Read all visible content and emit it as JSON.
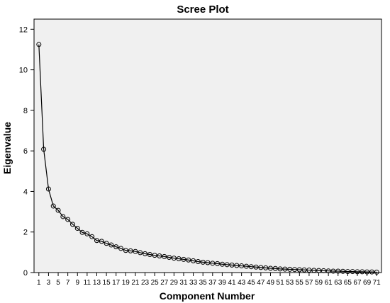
{
  "chart_data": {
    "type": "line",
    "title": "Scree Plot",
    "xlabel": "Component Number",
    "ylabel": "Eigenvalue",
    "ylim": [
      0,
      12.5
    ],
    "xlim": [
      0,
      72
    ],
    "yticks": [
      0,
      2,
      4,
      6,
      8,
      10,
      12
    ],
    "xticks": [
      1,
      3,
      5,
      7,
      9,
      11,
      13,
      15,
      17,
      19,
      21,
      23,
      25,
      27,
      29,
      31,
      33,
      35,
      37,
      39,
      41,
      43,
      45,
      47,
      49,
      51,
      53,
      55,
      57,
      59,
      61,
      63,
      65,
      67,
      69,
      71
    ],
    "grid": false,
    "legend": "none",
    "marker": "open-circle",
    "colors": {
      "plot_background": "#f0f0f0",
      "line": "#000000"
    },
    "series": [
      {
        "x": [
          1,
          2,
          3,
          4,
          5,
          6,
          7,
          8,
          9,
          10,
          11,
          12,
          13,
          14,
          15,
          16,
          17,
          18,
          19,
          20,
          21,
          22,
          23,
          24,
          25,
          26,
          27,
          28,
          29,
          30,
          31,
          32,
          33,
          34,
          35,
          36,
          37,
          38,
          39,
          40,
          41,
          42,
          43,
          44,
          45,
          46,
          47,
          48,
          49,
          50,
          51,
          52,
          53,
          54,
          55,
          56,
          57,
          58,
          59,
          60,
          61,
          62,
          63,
          64,
          65,
          66,
          67,
          68,
          69,
          70,
          71
        ],
        "values": [
          11.25,
          6.08,
          4.12,
          3.28,
          3.07,
          2.76,
          2.62,
          2.38,
          2.18,
          1.98,
          1.91,
          1.77,
          1.58,
          1.54,
          1.44,
          1.36,
          1.27,
          1.19,
          1.09,
          1.07,
          1.04,
          0.98,
          0.93,
          0.89,
          0.85,
          0.82,
          0.79,
          0.75,
          0.71,
          0.68,
          0.65,
          0.62,
          0.58,
          0.54,
          0.51,
          0.49,
          0.46,
          0.44,
          0.41,
          0.39,
          0.37,
          0.35,
          0.33,
          0.31,
          0.29,
          0.27,
          0.25,
          0.23,
          0.21,
          0.2,
          0.18,
          0.17,
          0.16,
          0.15,
          0.14,
          0.13,
          0.12,
          0.11,
          0.1,
          0.09,
          0.08,
          0.07,
          0.07,
          0.06,
          0.05,
          0.05,
          0.04,
          0.04,
          0.03,
          0.03,
          0.02
        ]
      }
    ]
  }
}
